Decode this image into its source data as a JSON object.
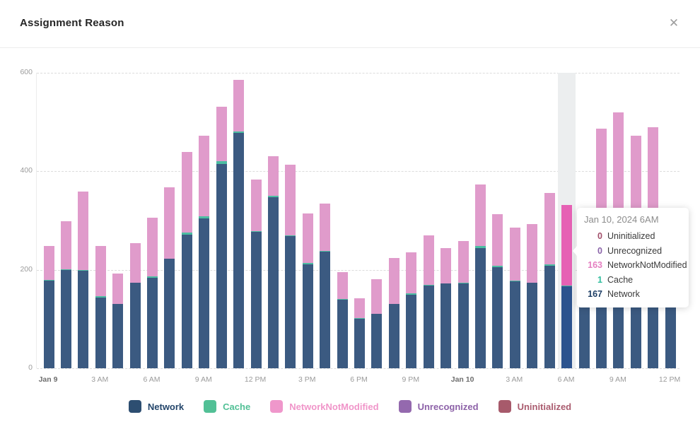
{
  "header": {
    "title": "Assignment Reason",
    "close_icon": "✕"
  },
  "chart_data": {
    "type": "bar",
    "stacked": true,
    "title": "Assignment Reason",
    "xlabel": "",
    "ylabel": "",
    "ylim": [
      0,
      600
    ],
    "yticks": [
      0,
      200,
      400,
      600
    ],
    "grid": "dashed-horizontal",
    "legend_position": "bottom",
    "hovered_index": 30,
    "hovered_category": "Jan 10 6AM",
    "x_tick_labels": [
      {
        "label": "Jan 9",
        "bold": true
      },
      {
        "label": "3 AM",
        "bold": false
      },
      {
        "label": "6 AM",
        "bold": false
      },
      {
        "label": "9 AM",
        "bold": false
      },
      {
        "label": "12 PM",
        "bold": false
      },
      {
        "label": "3 PM",
        "bold": false
      },
      {
        "label": "6 PM",
        "bold": false
      },
      {
        "label": "9 PM",
        "bold": false
      },
      {
        "label": "Jan 10",
        "bold": true
      },
      {
        "label": "3 AM",
        "bold": false
      },
      {
        "label": "6 AM",
        "bold": false
      },
      {
        "label": "9 AM",
        "bold": false
      },
      {
        "label": "12 PM",
        "bold": false
      }
    ],
    "categories": [
      "Jan 9 12AM",
      "1AM",
      "2AM",
      "3AM",
      "4AM",
      "5AM",
      "6AM",
      "7AM",
      "8AM",
      "9AM",
      "10AM",
      "11AM",
      "12PM",
      "1PM",
      "2PM",
      "3PM",
      "4PM",
      "5PM",
      "6PM",
      "7PM",
      "8PM",
      "9PM",
      "10PM",
      "11PM",
      "Jan 10 12AM",
      "1AM",
      "2AM",
      "3AM",
      "4AM",
      "5AM",
      "6AM",
      "7AM",
      "8AM",
      "9AM",
      "10AM",
      "11AM",
      "12PM"
    ],
    "series": [
      {
        "name": "Network",
        "color": "#3b5a81",
        "hover_color": "#2c538e",
        "values": [
          178,
          199,
          198,
          144,
          130,
          173,
          184,
          222,
          272,
          305,
          415,
          478,
          277,
          348,
          268,
          211,
          237,
          139,
          101,
          110,
          130,
          149,
          168,
          172,
          172,
          244,
          205,
          177,
          173,
          208,
          167,
          220,
          230,
          235,
          230,
          232,
          207
        ]
      },
      {
        "name": "Cache",
        "color": "#4cbda2",
        "hover_color": "#4cbda2",
        "values": [
          1,
          2,
          1,
          2,
          1,
          1,
          2,
          1,
          3,
          4,
          5,
          3,
          2,
          2,
          2,
          3,
          2,
          1,
          1,
          1,
          1,
          3,
          2,
          1,
          2,
          4,
          3,
          1,
          1,
          3,
          1,
          2,
          3,
          3,
          3,
          3,
          2
        ]
      },
      {
        "name": "NetworkNotModified",
        "color": "#e09bcb",
        "hover_color": "#e661b4",
        "values": [
          70,
          98,
          160,
          102,
          62,
          80,
          120,
          144,
          165,
          163,
          111,
          104,
          105,
          80,
          144,
          101,
          96,
          55,
          40,
          70,
          93,
          84,
          100,
          71,
          85,
          125,
          105,
          108,
          119,
          145,
          163,
          95,
          254,
          281,
          239,
          254,
          60
        ]
      },
      {
        "name": "Unrecognized",
        "color": "#9469ae",
        "hover_color": "#9469ae",
        "values": [
          0,
          0,
          0,
          0,
          0,
          0,
          0,
          0,
          0,
          0,
          0,
          0,
          0,
          0,
          0,
          0,
          0,
          0,
          0,
          0,
          0,
          0,
          0,
          0,
          0,
          0,
          0,
          0,
          0,
          0,
          0,
          0,
          0,
          0,
          0,
          0,
          0
        ]
      },
      {
        "name": "Uninitialized",
        "color": "#a75a6b",
        "hover_color": "#a75a6b",
        "values": [
          0,
          0,
          0,
          0,
          0,
          0,
          0,
          0,
          0,
          0,
          0,
          0,
          0,
          0,
          0,
          0,
          0,
          0,
          0,
          0,
          0,
          0,
          0,
          0,
          0,
          0,
          0,
          0,
          0,
          0,
          0,
          0,
          0,
          0,
          0,
          0,
          0
        ]
      }
    ]
  },
  "tooltip": {
    "header": "Jan 10, 2024 6AM",
    "rows": [
      {
        "value": "0",
        "label": "Uninitialized",
        "value_color": "#a14f6a"
      },
      {
        "value": "0",
        "label": "Unrecognized",
        "value_color": "#8a63a9"
      },
      {
        "value": "163",
        "label": "NetworkNotModified",
        "value_color": "#e57fc1"
      },
      {
        "value": "1",
        "label": "Cache",
        "value_color": "#2fbd9d"
      },
      {
        "value": "167",
        "label": "Network",
        "value_color": "#1e3f66"
      }
    ]
  },
  "legend": {
    "items": [
      {
        "label": "Network",
        "swatch_color": "#2d4e71",
        "text_color": "#24466b"
      },
      {
        "label": "Cache",
        "swatch_color": "#52c096",
        "text_color": "#52c096"
      },
      {
        "label": "NetworkNotModified",
        "swatch_color": "#ef97cb",
        "text_color": "#f095c9"
      },
      {
        "label": "Unrecognized",
        "swatch_color": "#9469ae",
        "text_color": "#8d62a8"
      },
      {
        "label": "Uninitialized",
        "swatch_color": "#a75a6b",
        "text_color": "#aa5c6f"
      }
    ]
  },
  "colors": {
    "hover_band": "#eceeef",
    "grid": "#dcdcdc",
    "axis_line": "#ececec"
  }
}
